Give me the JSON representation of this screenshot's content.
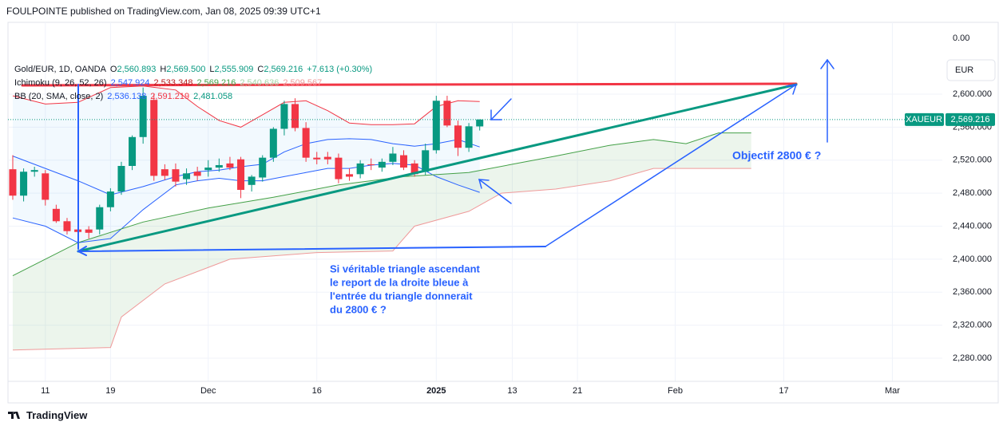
{
  "header": "FOULPOINTE published on TradingView.com, Jan 08, 2025 09:39 UTC+1",
  "footer": "TradingView",
  "chart_data": {
    "type": "candlestick",
    "legend": [
      {
        "parts": [
          {
            "text": "Gold/EUR, 1D, OANDA",
            "color": "#131722"
          },
          {
            "text": "O",
            "color": "#131722"
          },
          {
            "text": "2,560.893",
            "color": "#089981"
          },
          {
            "text": "H",
            "color": "#131722"
          },
          {
            "text": "2,569.500",
            "color": "#089981"
          },
          {
            "text": "L",
            "color": "#131722"
          },
          {
            "text": "2,555.909",
            "color": "#089981"
          },
          {
            "text": "C",
            "color": "#131722"
          },
          {
            "text": "2,569.216",
            "color": "#089981"
          },
          {
            "text": "+7.613 (+0.30%)",
            "color": "#089981"
          }
        ]
      },
      {
        "parts": [
          {
            "text": "Ichimoku (9, 26, 52, 26)",
            "color": "#131722"
          },
          {
            "text": "2,547.924",
            "color": "#2962ff"
          },
          {
            "text": "2,533.348",
            "color": "#b71c1c"
          },
          {
            "text": "2,569.216",
            "color": "#43a047"
          },
          {
            "text": "2,540.636",
            "color": "#a5d6a7"
          },
          {
            "text": "2,509.567",
            "color": "#ef9a9a"
          }
        ]
      },
      {
        "parts": [
          {
            "text": "BB (20, SMA, close, 2)",
            "color": "#131722"
          },
          {
            "text": "2,536.138",
            "color": "#2962ff"
          },
          {
            "text": "2,591.219",
            "color": "#f23645"
          },
          {
            "text": "2,481.058",
            "color": "#089981"
          }
        ]
      }
    ],
    "currency": "EUR",
    "top_label": "0.00",
    "symbol_tag": "XAUEUR",
    "last_price_label": "2,569.216",
    "up_color": "#089981",
    "down_color": "#f23645",
    "grid": true,
    "candles": {
      "open": [
        2509,
        2477,
        2506,
        2504,
        2461,
        2446,
        2436,
        2436,
        2436,
        2463,
        2482,
        2513,
        2548,
        2593,
        2509,
        2509,
        2497,
        2506,
        2508,
        2511,
        2516,
        2521,
        2490,
        2499,
        2523,
        2558,
        2588,
        2559,
        2523,
        2524,
        2523,
        2503,
        2503,
        2515,
        2511,
        2518,
        2526,
        2516,
        2506,
        2532,
        2592,
        2562,
        2535,
        2560.893
      ],
      "high": [
        2526,
        2510,
        2512,
        2508,
        2466,
        2450,
        2440,
        2440,
        2466,
        2486,
        2518,
        2550,
        2608,
        2600,
        2515,
        2516,
        2510,
        2512,
        2520,
        2522,
        2524,
        2524,
        2502,
        2526,
        2560,
        2592,
        2595,
        2566,
        2530,
        2530,
        2528,
        2510,
        2520,
        2522,
        2522,
        2536,
        2532,
        2520,
        2540,
        2598,
        2598,
        2568,
        2565,
        2569.5
      ],
      "low": [
        2472,
        2470,
        2500,
        2465,
        2444,
        2430,
        2419,
        2425,
        2430,
        2458,
        2478,
        2508,
        2540,
        2495,
        2496,
        2488,
        2490,
        2495,
        2500,
        2506,
        2508,
        2474,
        2482,
        2494,
        2518,
        2550,
        2555,
        2518,
        2515,
        2515,
        2492,
        2495,
        2498,
        2508,
        2506,
        2514,
        2508,
        2500,
        2502,
        2528,
        2560,
        2525,
        2530,
        2555.909
      ],
      "close": [
        2477,
        2506,
        2508,
        2472,
        2446,
        2434,
        2433,
        2432,
        2463,
        2482,
        2513,
        2548,
        2598,
        2501,
        2501,
        2494,
        2504,
        2501,
        2511,
        2514,
        2511,
        2484,
        2500,
        2523,
        2558,
        2588,
        2559,
        2523,
        2521,
        2521,
        2497,
        2500,
        2516,
        2514,
        2518,
        2528,
        2511,
        2503,
        2532,
        2592,
        2562,
        2535,
        2561,
        2569.216
      ]
    },
    "series": [
      {
        "color": "#f23645",
        "x": [
          0,
          3,
          6,
          9,
          12,
          15,
          17,
          19,
          21,
          23,
          25,
          27,
          29,
          31,
          33,
          35,
          37,
          39,
          41,
          43
        ],
        "values": [
          2598,
          2588,
          2590,
          2608,
          2610,
          2605,
          2585,
          2568,
          2560,
          2575,
          2590,
          2592,
          2580,
          2565,
          2563,
          2563,
          2564,
          2585,
          2592,
          2591
        ]
      },
      {
        "color": "#2962ff",
        "x": [
          0,
          3,
          6,
          9,
          12,
          15,
          17,
          19,
          21,
          23,
          25,
          27,
          29,
          31,
          33,
          35,
          37,
          39,
          41,
          43
        ],
        "values": [
          2525,
          2510,
          2495,
          2478,
          2488,
          2500,
          2506,
          2508,
          2512,
          2515,
          2530,
          2540,
          2545,
          2546,
          2545,
          2540,
          2537,
          2540,
          2545,
          2536
        ]
      },
      {
        "color": "#2962ff",
        "x": [
          0,
          3,
          6,
          9,
          12,
          15,
          17,
          19,
          21,
          23,
          25,
          27,
          29,
          31,
          33,
          35,
          37,
          39,
          41,
          43
        ],
        "values": [
          2450,
          2440,
          2420,
          2425,
          2460,
          2490,
          2495,
          2498,
          2495,
          2495,
          2500,
          2505,
          2510,
          2510,
          2514,
          2516,
          2514,
          2500,
          2490,
          2481
        ]
      },
      {
        "color": "#43a047",
        "x": [
          0,
          6,
          12,
          18,
          24,
          30,
          36,
          42,
          46,
          50,
          55,
          59,
          62,
          65,
          68
        ],
        "values": [
          2380,
          2420,
          2445,
          2462,
          2475,
          2490,
          2500,
          2505,
          2515,
          2525,
          2538,
          2545,
          2540,
          2553,
          2553
        ]
      },
      {
        "color": "#ef9a9a",
        "x": [
          0,
          9,
          10,
          14,
          20,
          28,
          35,
          37,
          42,
          45,
          50,
          55,
          59,
          68
        ],
        "values": [
          2290,
          2293,
          2330,
          2370,
          2400,
          2408,
          2410,
          2440,
          2458,
          2480,
          2485,
          2495,
          2510,
          2510
        ]
      }
    ],
    "xlim": [
      -0.44,
      85.6
    ],
    "xticks": [
      {
        "value": 3,
        "label": "11"
      },
      {
        "value": 9,
        "label": "19"
      },
      {
        "value": 18,
        "label": "Dec"
      },
      {
        "value": 28,
        "label": "16"
      },
      2025,
      {
        "value": 46,
        "label": "13"
      },
      {
        "value": 52,
        "label": "21"
      },
      {
        "value": 61,
        "label": "Feb"
      },
      {
        "value": 71,
        "label": "17"
      },
      {
        "value": 81,
        "label": "Mar"
      }
    ],
    "xtick_2025_index": 39,
    "ylim": [
      2252,
      2687
    ],
    "yticks": [
      {
        "value": 2600,
        "label": "2,600.000"
      },
      {
        "value": 2560,
        "label": "2,560.000"
      },
      {
        "value": 2520,
        "label": "2,520.000"
      },
      {
        "value": 2480,
        "label": "2,480.000"
      },
      {
        "value": 2440,
        "label": "2,440.000"
      },
      {
        "value": 2400,
        "label": "2,400.000"
      },
      {
        "value": 2360,
        "label": "2,360.000"
      },
      {
        "value": 2320,
        "label": "2,320.000"
      },
      {
        "value": 2280,
        "label": "2,280.000"
      }
    ],
    "annotations": [
      "Objectif 2800 € ?",
      "Si véritable triangle ascendant",
      "le report de la droite bleue à",
      "l'entrée du triangle donnerait",
      "du 2800 € ?"
    ]
  }
}
